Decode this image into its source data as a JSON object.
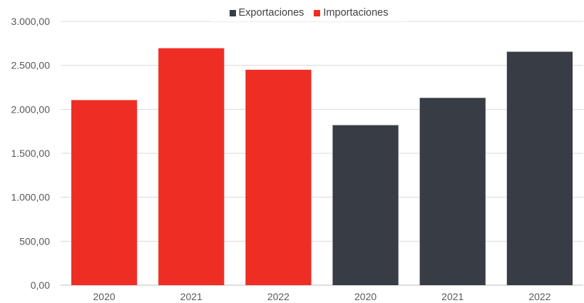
{
  "chart_data": {
    "type": "bar",
    "categories": [
      "2020",
      "2021",
      "2022",
      "2020",
      "2021",
      "2022"
    ],
    "series": [
      {
        "name": "Exportaciones",
        "color": "#383C45",
        "values": [
          null,
          null,
          null,
          1820,
          2130,
          2655
        ]
      },
      {
        "name": "Importaciones",
        "color": "#EE2E24",
        "values": [
          2105,
          2695,
          2450,
          null,
          null,
          null
        ]
      }
    ],
    "y_ticks": [
      "0,00",
      "500,00",
      "1.000,00",
      "1.500,00",
      "2.000,00",
      "2.500,00",
      "3.000,00"
    ],
    "ylim": [
      0,
      3000
    ],
    "legend_position": "top",
    "grid": true,
    "title": "",
    "xlabel": "",
    "ylabel": ""
  }
}
